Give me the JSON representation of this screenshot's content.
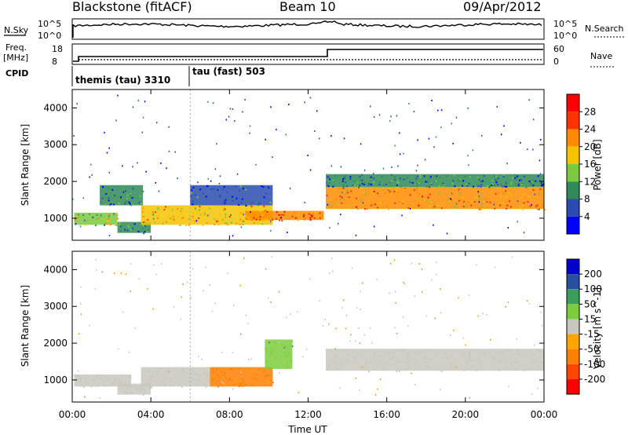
{
  "header": {
    "station": "Blackstone (fitACF)",
    "beam": "Beam 10",
    "date": "09/Apr/2012"
  },
  "summary_panels": {
    "nsky_label": "N.Sky",
    "nsearch_label": "N.Search",
    "noise_ticks": [
      "10^5",
      "10^0"
    ],
    "freq_label": [
      "Freq.",
      "[MHz]"
    ],
    "freq_ticks": [
      "18",
      "8"
    ],
    "nave_label": "Nave",
    "nave_ticks": [
      "60",
      "0"
    ],
    "cpid_label": "CPID",
    "cpid_modes": [
      {
        "label": "themis (tau)  3310",
        "start_hour": 0
      },
      {
        "label": "tau (fast)  503",
        "start_hour": 6
      }
    ]
  },
  "colors": {
    "power_scale": [
      "#0000ff",
      "#2a4cb0",
      "#2e8b57",
      "#7cc840",
      "#f5c400",
      "#ff8c00",
      "#ff3300",
      "#ff0000"
    ],
    "velocity_scale": [
      "#ff0000",
      "#ff4500",
      "#ff7f00",
      "#ffa500",
      "#c8c8c0",
      "#7ccd3c",
      "#3a9d5a",
      "#2850a0",
      "#0000cd"
    ],
    "ground_scatter": "#c8c8c0"
  },
  "chart_data": [
    {
      "type": "heatmap",
      "panel": "power",
      "ylabel": "Slant Range [km]",
      "y_ticks": [
        1000,
        2000,
        3000,
        4000
      ],
      "ylim": [
        400,
        4500
      ],
      "xlim": [
        0,
        24
      ],
      "colorbar": {
        "label": "Power [dB]",
        "ticks": [
          "28",
          "24",
          "20",
          "16",
          "12",
          "8",
          "4"
        ],
        "range": [
          0,
          30
        ]
      },
      "bands": [
        {
          "t0": 0.1,
          "t1": 2.3,
          "r0": 820,
          "r1": 1150,
          "r1_end": 1650,
          "level": 14
        },
        {
          "t0": 1.4,
          "t1": 3.6,
          "r0": 1350,
          "r1": 1900,
          "level": 8
        },
        {
          "t0": 2.3,
          "t1": 4.0,
          "r0": 600,
          "r1": 900,
          "level": 8
        },
        {
          "t0": 3.5,
          "t1": 10.2,
          "r0": 820,
          "r1": 1350,
          "level": 18
        },
        {
          "t0": 6.0,
          "t1": 10.2,
          "r0": 1350,
          "r1": 1900,
          "level": 6
        },
        {
          "t0": 8.8,
          "t1": 12.8,
          "r0": 950,
          "r1": 1200,
          "level": 22
        },
        {
          "t0": 12.9,
          "t1": 24.0,
          "r0": 1250,
          "r1": 1850,
          "level": 20
        },
        {
          "t0": 12.9,
          "t1": 24.0,
          "r0": 1850,
          "r1": 2200,
          "level": 8
        }
      ]
    },
    {
      "type": "heatmap",
      "panel": "velocity",
      "xlabel": "Time UT",
      "ylabel": "Slant Range [km]",
      "x_ticks": [
        "00:00",
        "04:00",
        "08:00",
        "12:00",
        "16:00",
        "20:00",
        "00:00"
      ],
      "y_ticks": [
        1000,
        2000,
        3000,
        4000
      ],
      "ylim": [
        400,
        4500
      ],
      "xlim": [
        0,
        24
      ],
      "colorbar": {
        "label": "Velocity [m s^-1]",
        "ticks": [
          "200",
          "100",
          "50",
          "15",
          "-15",
          "-50",
          "-100",
          "-200"
        ],
        "range": [
          -250,
          250
        ]
      },
      "bands": [
        {
          "t0": 0.1,
          "t1": 3.0,
          "r0": 820,
          "r1": 1150,
          "velocity": 0
        },
        {
          "t0": 2.3,
          "t1": 4.0,
          "r0": 600,
          "r1": 900,
          "velocity": 0
        },
        {
          "t0": 3.5,
          "t1": 7.0,
          "r0": 820,
          "r1": 1350,
          "velocity": 0
        },
        {
          "t0": 7.0,
          "t1": 10.2,
          "r0": 820,
          "r1": 1350,
          "velocity": -60
        },
        {
          "t0": 9.8,
          "t1": 11.2,
          "r0": 1300,
          "r1": 2100,
          "velocity": 40
        },
        {
          "t0": 12.9,
          "t1": 24.0,
          "r0": 1250,
          "r1": 1850,
          "velocity": 0
        }
      ]
    }
  ]
}
